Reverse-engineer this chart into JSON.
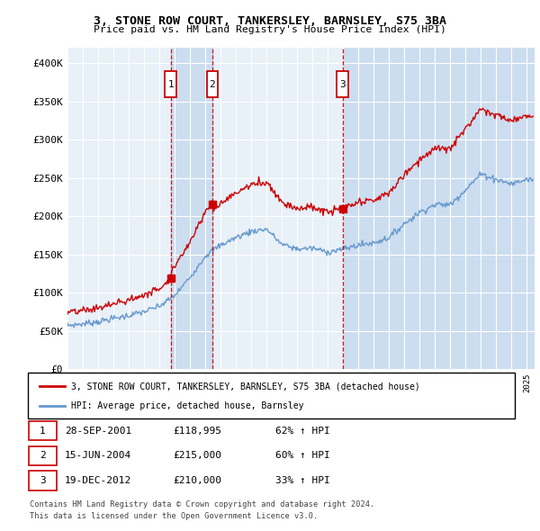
{
  "title": "3, STONE ROW COURT, TANKERSLEY, BARNSLEY, S75 3BA",
  "subtitle": "Price paid vs. HM Land Registry's House Price Index (HPI)",
  "ylim": [
    0,
    420000
  ],
  "yticks": [
    0,
    50000,
    100000,
    150000,
    200000,
    250000,
    300000,
    350000,
    400000
  ],
  "ytick_labels": [
    "£0",
    "£50K",
    "£100K",
    "£150K",
    "£200K",
    "£250K",
    "£300K",
    "£350K",
    "£400K"
  ],
  "bg_color": "#e8f0f8",
  "shade_color": "#ccddf0",
  "grid_color": "#ffffff",
  "legend_line1": "3, STONE ROW COURT, TANKERSLEY, BARNSLEY, S75 3BA (detached house)",
  "legend_line2": "HPI: Average price, detached house, Barnsley",
  "transactions": [
    {
      "num": 1,
      "date": "28-SEP-2001",
      "price": 118995,
      "pct": "62% ↑ HPI",
      "x_year": 2001.74
    },
    {
      "num": 2,
      "date": "15-JUN-2004",
      "price": 215000,
      "pct": "60% ↑ HPI",
      "x_year": 2004.46
    },
    {
      "num": 3,
      "date": "19-DEC-2012",
      "price": 210000,
      "pct": "33% ↑ HPI",
      "x_year": 2012.96
    }
  ],
  "footer1": "Contains HM Land Registry data © Crown copyright and database right 2024.",
  "footer2": "This data is licensed under the Open Government Licence v3.0.",
  "red_color": "#cc0000",
  "blue_color": "#6699cc",
  "xlim_start": 1995,
  "xlim_end": 2025.5
}
